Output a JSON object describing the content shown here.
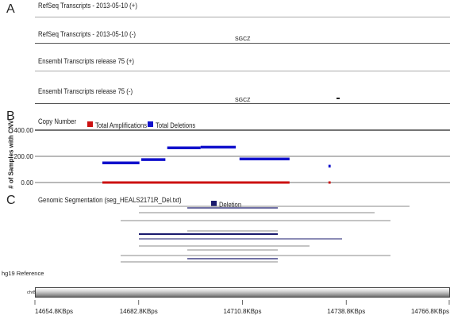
{
  "panels": {
    "a": "A",
    "b": "B",
    "c": "C"
  },
  "tracks": {
    "refseq_plus": "RefSeq Transcripts - 2013-05-10 (+)",
    "refseq_minus": "RefSeq Transcripts - 2013-05-10 (-)",
    "ensembl_plus": "Ensembl Transcripts release 75 (+)",
    "ensembl_minus": "Ensembl Transcripts release 75 (-)",
    "refseq_minus_gene": "SGCZ",
    "ensembl_minus_gene": "SGCZ"
  },
  "copy_number": {
    "title": "Copy Number",
    "ylabel": "# of Samples with CNV",
    "legend": [
      {
        "label": "Total Amplifications",
        "color": "#cc1111"
      },
      {
        "label": "Total Deletions",
        "color": "#1111cc"
      }
    ],
    "y_ticks": [
      "400.00",
      "200.00",
      "0.00"
    ]
  },
  "segmentation": {
    "title": "Genomic Segmentation (seg_HEALS2171R_Del.txt)",
    "legend_label": "Deletion",
    "legend_color": "#1a1a6e"
  },
  "reference": {
    "title": "hg19 Reference",
    "chrom": "chr8",
    "x_ticks": [
      "14654.8KBps",
      "14682.8KBps",
      "14710.8KBps",
      "14738.8KBps",
      "14766.8KBps"
    ]
  },
  "chart_data": {
    "type": "bar",
    "title": "Copy Number",
    "ylabel": "# of Samples with CNV",
    "ylim": [
      0,
      400
    ],
    "x_unit": "KBps",
    "xlim": [
      14654.8,
      14766.8
    ],
    "series": [
      {
        "name": "Total Deletions",
        "segments": [
          {
            "x0": 14673.0,
            "x1": 14683.0,
            "y": 150
          },
          {
            "x0": 14683.5,
            "x1": 14690.0,
            "y": 175
          },
          {
            "x0": 14690.5,
            "x1": 14699.5,
            "y": 265
          },
          {
            "x0": 14699.5,
            "x1": 14709.0,
            "y": 270
          },
          {
            "x0": 14710.0,
            "x1": 14723.5,
            "y": 180
          },
          {
            "x0": 14734.0,
            "x1": 14734.6,
            "y": 125
          }
        ]
      },
      {
        "name": "Total Amplifications",
        "segments": [
          {
            "x0": 14673.0,
            "x1": 14723.5,
            "y": 4
          },
          {
            "x0": 14734.0,
            "x1": 14734.6,
            "y": 4
          }
        ]
      }
    ]
  }
}
